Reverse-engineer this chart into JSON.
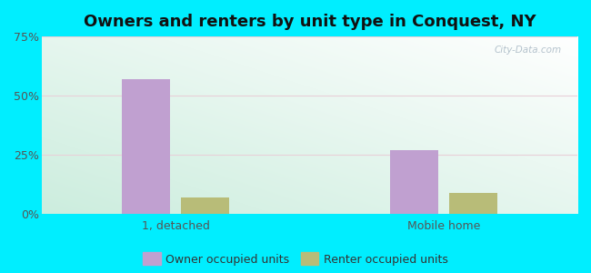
{
  "title": "Owners and renters by unit type in Conquest, NY",
  "categories": [
    "1, detached",
    "Mobile home"
  ],
  "owner_values": [
    57.0,
    27.0
  ],
  "renter_values": [
    7.0,
    9.0
  ],
  "owner_color": "#c0a0d0",
  "renter_color": "#b8bc78",
  "ylim": [
    0,
    75
  ],
  "yticks": [
    0,
    25,
    50,
    75
  ],
  "yticklabels": [
    "0%",
    "25%",
    "50%",
    "75%"
  ],
  "bar_width": 0.18,
  "bg_color": "#00eeff",
  "legend_owner": "Owner occupied units",
  "legend_renter": "Renter occupied units",
  "title_fontsize": 13,
  "tick_fontsize": 9,
  "legend_fontsize": 9,
  "watermark": "City-Data.com"
}
